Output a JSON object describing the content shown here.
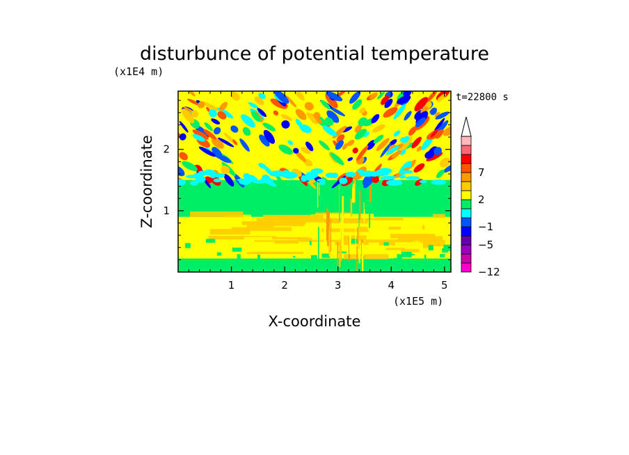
{
  "chart_data": {
    "type": "heatmap",
    "title": "disturbunce of potential temperature",
    "time_label": "t=22800 s",
    "xlabel": "X-coordinate",
    "ylabel": "Z-coordinate",
    "x_unit": "(x1E5 m)",
    "y_unit": "(x1E4 m)",
    "xlim": [
      0,
      5.12
    ],
    "ylim": [
      0,
      2.95
    ],
    "x_ticks": [
      "1",
      "2",
      "3",
      "4",
      "5"
    ],
    "y_ticks": [
      "1",
      "2"
    ],
    "colorbar": {
      "labels": [
        "-12",
        "-5",
        "-1",
        "2",
        "7"
      ],
      "levels": [
        -12,
        -9,
        -7,
        -5,
        -3,
        -1,
        0,
        1,
        2,
        3,
        5,
        7,
        9,
        12
      ],
      "colors": [
        "#ff00cc",
        "#cc00aa",
        "#9900bb",
        "#6600aa",
        "#0000ff",
        "#0055ff",
        "#00ffff",
        "#00ee66",
        "#ffff00",
        "#ffcc00",
        "#ff9900",
        "#ff5500",
        "#ff0000",
        "#ff6677",
        "#ffbbbb"
      ],
      "extend": "max"
    },
    "field_description_bands": [
      {
        "z_range": [
          0,
          0.25
        ],
        "dominant": "green/yellow"
      },
      {
        "z_range": [
          0.25,
          0.9
        ],
        "dominant": "yellow/orange"
      },
      {
        "z_range": [
          0.9,
          1.45
        ],
        "dominant": "green"
      },
      {
        "z_range": [
          1.45,
          2.95
        ],
        "dominant": "wave pattern: orange/red/blue/cyan"
      }
    ]
  }
}
